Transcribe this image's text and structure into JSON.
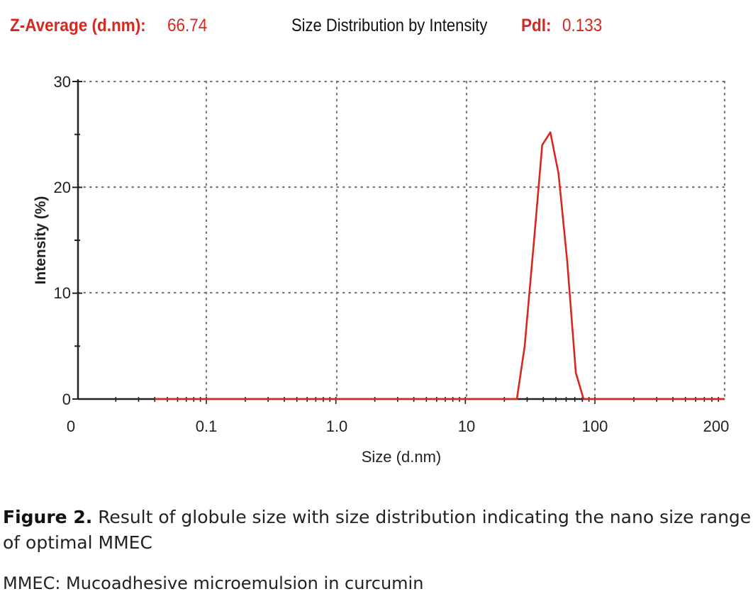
{
  "header": {
    "zaverage_label": "Z-Average (d.nm):",
    "zaverage_value": "66.74",
    "pdi_label": "PdI:",
    "pdi_value": "0.133"
  },
  "chart_data": {
    "type": "line",
    "title": "Size Distribution by Intensity",
    "xlabel": "Size (d.nm)",
    "ylabel": "Intensity (%)",
    "xscale": "log",
    "x_tick_labels": [
      "0",
      "0.1",
      "1.0",
      "10",
      "100",
      "200"
    ],
    "y_tick_labels": [
      "0",
      "10",
      "20",
      "30"
    ],
    "ylim": [
      0,
      30
    ],
    "grid": true,
    "series": [
      {
        "color": "#d6281e",
        "points": [
          [
            0.04,
            0
          ],
          [
            0.1,
            0
          ],
          [
            1.0,
            0
          ],
          [
            10,
            0
          ],
          [
            25,
            0
          ],
          [
            28.7,
            5
          ],
          [
            33.9,
            15
          ],
          [
            39.2,
            24
          ],
          [
            45.3,
            25.2
          ],
          [
            52.4,
            21.3
          ],
          [
            61.2,
            13
          ],
          [
            71.2,
            2.5
          ],
          [
            81.8,
            0
          ],
          [
            100,
            0
          ],
          [
            1000,
            0
          ]
        ]
      }
    ]
  },
  "caption": {
    "figure_label": "Figure 2.",
    "text": "Result of globule size with size distribution indicating the nano size range of optimal MMEC",
    "note": "MMEC: Mucoadhesive microemulsion in curcumin"
  }
}
